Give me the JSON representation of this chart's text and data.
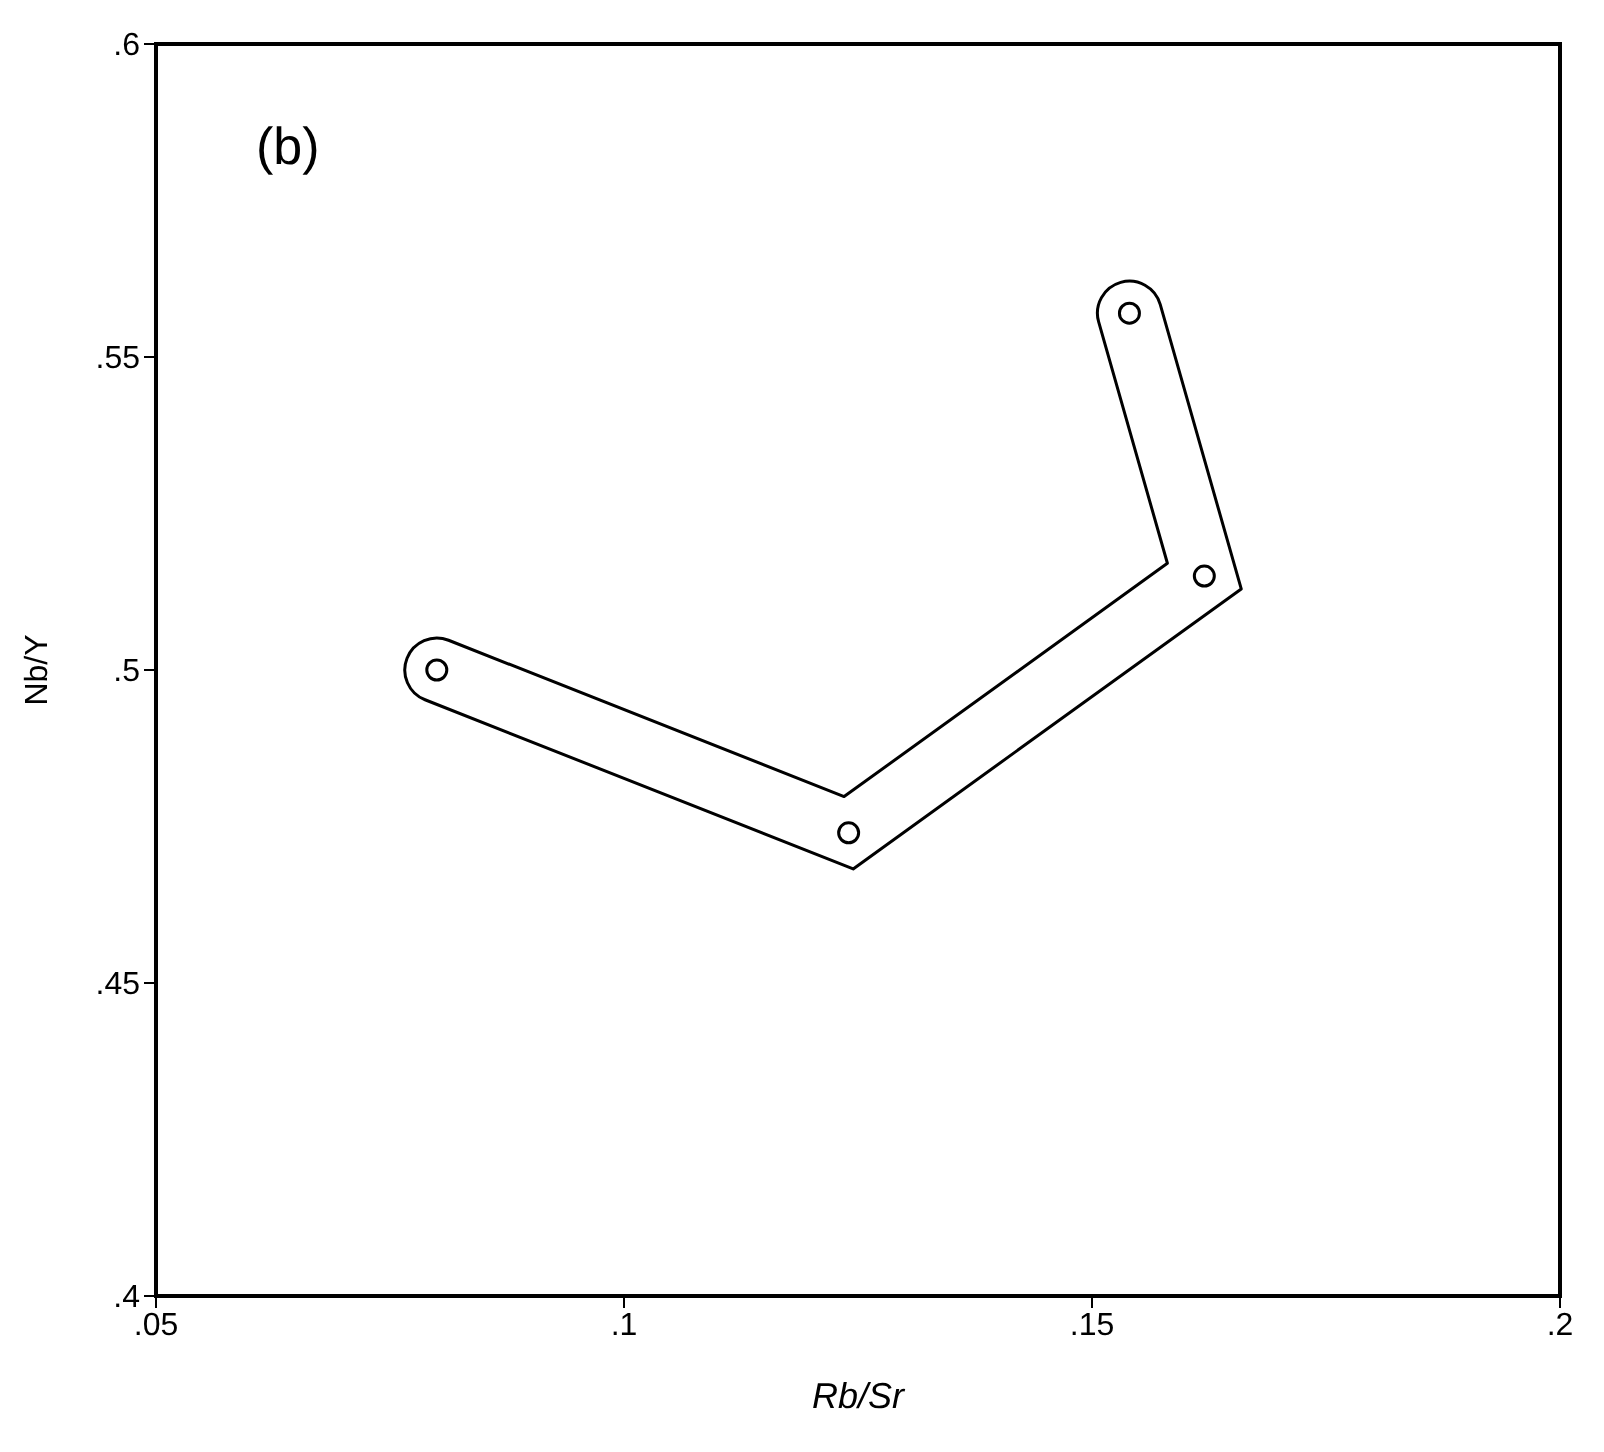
{
  "chart_data": {
    "type": "scatter",
    "xlabel": "Rb/Sr",
    "ylabel": "Nb/Y",
    "annotations": [
      "(b)"
    ],
    "x": [
      0.08,
      0.124,
      0.162,
      0.154
    ],
    "values": [
      0.5,
      0.474,
      0.515,
      0.557
    ],
    "color": "#000000",
    "marker": "circle",
    "xlim": [
      0.05,
      0.2
    ],
    "xticks": [
      {
        "value": 0.05,
        "label": ".05"
      },
      {
        "value": 0.1,
        "label": ".1"
      },
      {
        "value": 0.15,
        "label": ".15"
      },
      {
        "value": 0.2,
        "label": ".2"
      }
    ],
    "ylim": [
      0.4,
      0.6
    ],
    "yticks": [
      {
        "value": 0.4,
        "label": ".4"
      },
      {
        "value": 0.45,
        "label": ".45"
      },
      {
        "value": 0.5,
        "label": ".5"
      },
      {
        "value": 0.55,
        "label": ".55"
      },
      {
        "value": 0.6,
        "label": ".6"
      }
    ]
  }
}
